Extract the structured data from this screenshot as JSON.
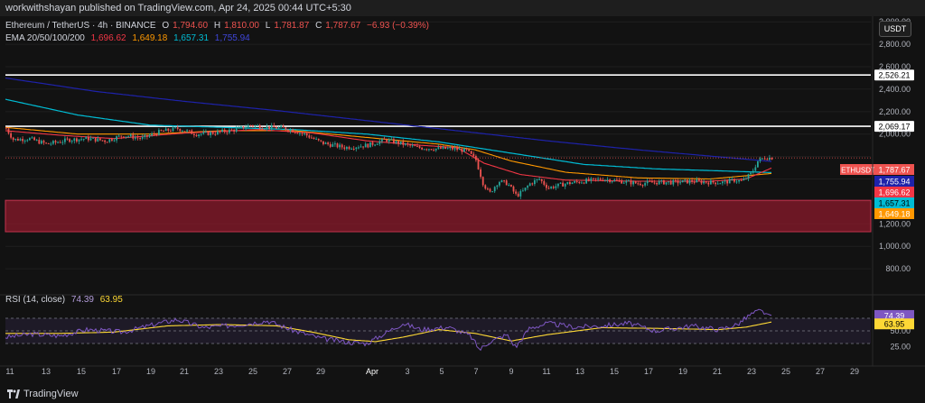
{
  "header": {
    "publisher": "workwithshayan published on TradingView.com, Apr 24, 2025 00:44 UTC+5:30"
  },
  "legend": {
    "symbol": "Ethereum / TetherUS · 4h · BINANCE",
    "open_label": "O",
    "open": "1,794.60",
    "high_label": "H",
    "high": "1,810.00",
    "low_label": "L",
    "low": "1,781.87",
    "close_label": "C",
    "close": "1,787.67",
    "change": "−6.93 (−0.39%)",
    "ema_title": "EMA 20/50/100/200",
    "ema20": "1,696.62",
    "ema50": "1,649.18",
    "ema100": "1,657.31",
    "ema200": "1,755.94"
  },
  "quote_currency": "USDT",
  "rsi_legend": {
    "title": "RSI (14, close)",
    "rsi": "74.39",
    "ma": "63.95"
  },
  "footer": {
    "brand": "TradingView"
  },
  "colors": {
    "up": "#26a69a",
    "down": "#ef5350",
    "ema20": "#f23645",
    "ema50": "#ff9800",
    "ema100": "#00bcd4",
    "ema200": "#1e22aa",
    "zone": "#8b1a2b",
    "rsi": "#7e57c2",
    "rsi_ma": "#fdd835"
  },
  "chart_data": [
    {
      "type": "candlestick",
      "title": "Ethereum / TetherUS · 4h · BINANCE",
      "ylim": [
        600,
        3050
      ],
      "price_axis_ticks": [
        "3,000.00",
        "2,800.00",
        "2,600.00",
        "2,400.00",
        "2,200.00",
        "2,000.00",
        "1,200.00",
        "1,000.00",
        "800.00"
      ],
      "x_axis_ticks": [
        "11",
        "13",
        "15",
        "17",
        "19",
        "21",
        "23",
        "25",
        "27",
        "29",
        "Apr",
        "3",
        "5",
        "7",
        "9",
        "11",
        "13",
        "15",
        "17",
        "19",
        "21",
        "23",
        "25",
        "27",
        "29"
      ],
      "horizontal_levels": [
        {
          "value": 2526.21,
          "label": "2,526.21"
        },
        {
          "value": 2069.17,
          "label": "2,069.17"
        }
      ],
      "demand_zone": {
        "from": 1130,
        "to": 1410
      },
      "price_tags": [
        {
          "label": "ETHUSDT",
          "value": 1787.67,
          "text": "1,787.67",
          "color": "#ef5350"
        },
        {
          "value": 1755.94,
          "text": "1,755.94",
          "color": "#1e22aa"
        },
        {
          "value": 1696.62,
          "text": "1,696.62",
          "color": "#f23645"
        },
        {
          "value": 1657.31,
          "text": "1,657.31",
          "color": "#00bcd4"
        },
        {
          "value": 1649.18,
          "text": "1,649.18",
          "color": "#ff9800"
        }
      ],
      "close_path_anchors": [
        [
          0,
          2050
        ],
        [
          8,
          1950
        ],
        [
          25,
          1960
        ],
        [
          45,
          1910
        ],
        [
          70,
          1950
        ],
        [
          90,
          1960
        ],
        [
          110,
          1940
        ],
        [
          130,
          1990
        ],
        [
          150,
          1960
        ],
        [
          170,
          2020
        ],
        [
          190,
          2050
        ],
        [
          210,
          2000
        ],
        [
          230,
          2010
        ],
        [
          255,
          2040
        ],
        [
          270,
          2080
        ],
        [
          290,
          2060
        ],
        [
          310,
          2050
        ],
        [
          330,
          2000
        ],
        [
          350,
          1920
        ],
        [
          375,
          1880
        ],
        [
          400,
          1900
        ],
        [
          420,
          1950
        ],
        [
          435,
          1920
        ],
        [
          455,
          1880
        ],
        [
          475,
          1870
        ],
        [
          495,
          1870
        ],
        [
          510,
          1850
        ],
        [
          520,
          1770
        ],
        [
          528,
          1560
        ],
        [
          535,
          1470
        ],
        [
          545,
          1580
        ],
        [
          555,
          1560
        ],
        [
          565,
          1450
        ],
        [
          572,
          1490
        ],
        [
          580,
          1560
        ],
        [
          590,
          1600
        ],
        [
          600,
          1520
        ],
        [
          620,
          1560
        ],
        [
          640,
          1580
        ],
        [
          660,
          1600
        ],
        [
          680,
          1580
        ],
        [
          700,
          1560
        ],
        [
          720,
          1570
        ],
        [
          740,
          1570
        ],
        [
          760,
          1580
        ],
        [
          780,
          1570
        ],
        [
          795,
          1570
        ],
        [
          805,
          1590
        ],
        [
          815,
          1580
        ],
        [
          825,
          1650
        ],
        [
          832,
          1760
        ],
        [
          840,
          1790
        ],
        [
          848,
          1788
        ]
      ],
      "ema20_anchors": [
        [
          0,
          2030
        ],
        [
          60,
          1990
        ],
        [
          120,
          1960
        ],
        [
          200,
          2010
        ],
        [
          280,
          2040
        ],
        [
          340,
          2010
        ],
        [
          400,
          1940
        ],
        [
          460,
          1900
        ],
        [
          500,
          1880
        ],
        [
          530,
          1740
        ],
        [
          570,
          1640
        ],
        [
          620,
          1590
        ],
        [
          700,
          1580
        ],
        [
          780,
          1580
        ],
        [
          820,
          1600
        ],
        [
          848,
          1697
        ]
      ],
      "ema50_anchors": [
        [
          0,
          2060
        ],
        [
          80,
          2000
        ],
        [
          160,
          2000
        ],
        [
          240,
          2030
        ],
        [
          320,
          2030
        ],
        [
          400,
          1970
        ],
        [
          480,
          1910
        ],
        [
          520,
          1860
        ],
        [
          560,
          1760
        ],
        [
          620,
          1660
        ],
        [
          700,
          1610
        ],
        [
          780,
          1600
        ],
        [
          848,
          1649
        ]
      ],
      "ema100_anchors": [
        [
          0,
          2310
        ],
        [
          80,
          2170
        ],
        [
          160,
          2080
        ],
        [
          240,
          2060
        ],
        [
          320,
          2040
        ],
        [
          400,
          2000
        ],
        [
          480,
          1930
        ],
        [
          560,
          1830
        ],
        [
          640,
          1730
        ],
        [
          720,
          1690
        ],
        [
          800,
          1670
        ],
        [
          848,
          1657
        ]
      ],
      "ema200_anchors": [
        [
          0,
          2500
        ],
        [
          100,
          2380
        ],
        [
          200,
          2290
        ],
        [
          300,
          2210
        ],
        [
          400,
          2120
        ],
        [
          500,
          2030
        ],
        [
          600,
          1940
        ],
        [
          700,
          1860
        ],
        [
          800,
          1790
        ],
        [
          848,
          1756
        ]
      ]
    },
    {
      "type": "line",
      "title": "RSI (14, close)",
      "ylim": [
        0,
        100
      ],
      "y_ticks": [
        "50.00",
        "25.00"
      ],
      "bands": {
        "upper": 70,
        "middle": 50,
        "lower": 30
      },
      "rsi_anchors": [
        [
          0,
          40
        ],
        [
          30,
          45
        ],
        [
          60,
          42
        ],
        [
          90,
          52
        ],
        [
          130,
          48
        ],
        [
          170,
          62
        ],
        [
          190,
          68
        ],
        [
          220,
          55
        ],
        [
          260,
          60
        ],
        [
          290,
          66
        ],
        [
          320,
          50
        ],
        [
          350,
          38
        ],
        [
          380,
          32
        ],
        [
          400,
          30
        ],
        [
          420,
          46
        ],
        [
          440,
          62
        ],
        [
          460,
          52
        ],
        [
          490,
          56
        ],
        [
          515,
          42
        ],
        [
          525,
          20
        ],
        [
          535,
          32
        ],
        [
          555,
          44
        ],
        [
          565,
          24
        ],
        [
          580,
          54
        ],
        [
          600,
          62
        ],
        [
          630,
          56
        ],
        [
          660,
          58
        ],
        [
          690,
          62
        ],
        [
          720,
          50
        ],
        [
          760,
          58
        ],
        [
          790,
          52
        ],
        [
          810,
          60
        ],
        [
          825,
          76
        ],
        [
          835,
          82
        ],
        [
          848,
          74.39
        ]
      ],
      "ma_anchors": [
        [
          0,
          46
        ],
        [
          60,
          46
        ],
        [
          120,
          48
        ],
        [
          180,
          58
        ],
        [
          240,
          60
        ],
        [
          300,
          58
        ],
        [
          340,
          48
        ],
        [
          380,
          36
        ],
        [
          410,
          33
        ],
        [
          440,
          40
        ],
        [
          480,
          52
        ],
        [
          520,
          46
        ],
        [
          560,
          34
        ],
        [
          600,
          44
        ],
        [
          660,
          55
        ],
        [
          720,
          54
        ],
        [
          790,
          52
        ],
        [
          820,
          56
        ],
        [
          848,
          63.95
        ]
      ]
    }
  ]
}
